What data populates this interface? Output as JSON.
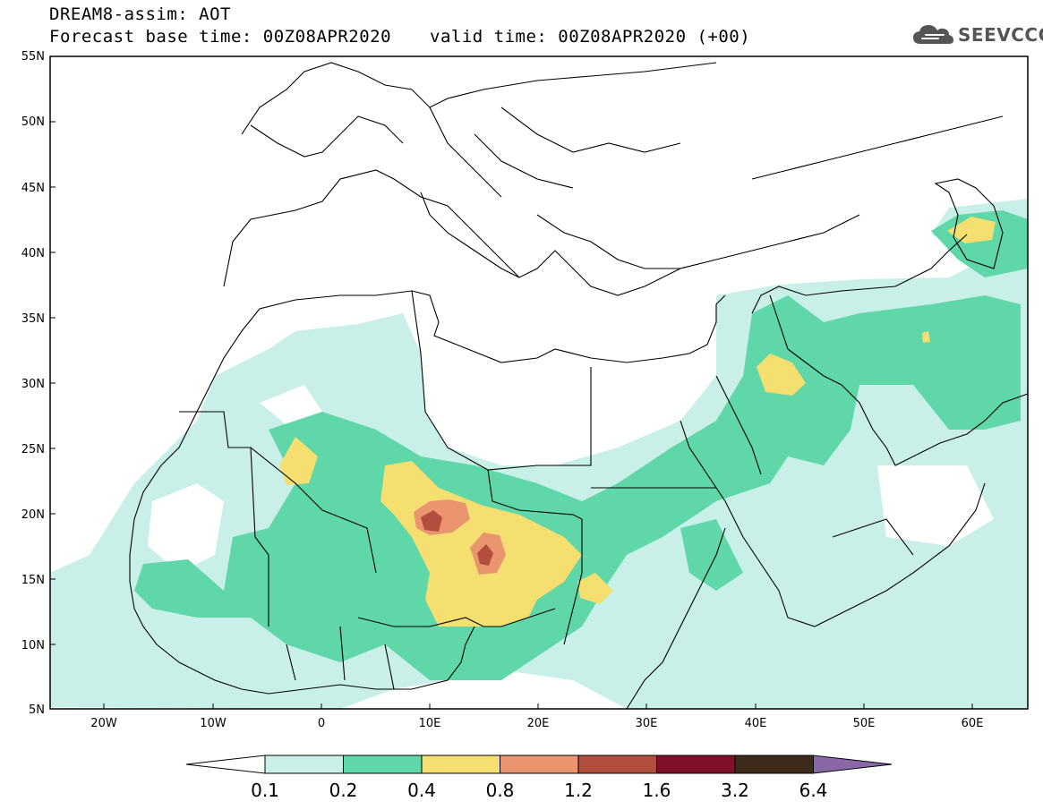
{
  "header": {
    "title": "DREAM8-assim: AOT",
    "base_time": "Forecast base time: 00Z08APR2020",
    "valid_time": "valid time: 00Z08APR2020 (+00)"
  },
  "logo": {
    "text": "SEEVCCC",
    "icon": "cloud-icon"
  },
  "map": {
    "variable": "AOT",
    "lat_labels": [
      "55N",
      "50N",
      "45N",
      "40N",
      "35N",
      "30N",
      "25N",
      "20N",
      "15N",
      "10N",
      "5N"
    ],
    "lon_labels": [
      "20W",
      "10W",
      "0",
      "10E",
      "20E",
      "30E",
      "40E",
      "50E",
      "60E"
    ],
    "lat_range": [
      5,
      55
    ],
    "lon_range": [
      -25,
      65
    ]
  },
  "colorbar": {
    "levels": [
      "0.1",
      "0.2",
      "0.4",
      "0.8",
      "1.2",
      "1.6",
      "3.2",
      "6.4"
    ],
    "colors": [
      "#c8f0e8",
      "#5fd7a8",
      "#f4df70",
      "#ea9470",
      "#b14e3e",
      "#80102a",
      "#3d2a1a",
      "#8a68a8"
    ],
    "under_color": "#ffffff"
  }
}
